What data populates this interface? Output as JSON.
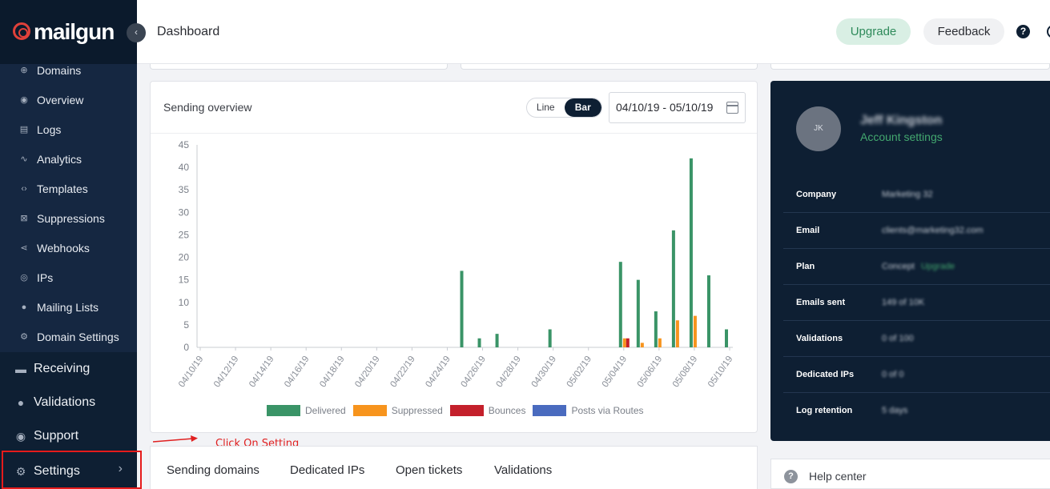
{
  "brand": {
    "name": "mailgun",
    "accent": "#e0413a"
  },
  "header": {
    "title": "Dashboard",
    "upgrade_label": "Upgrade",
    "feedback_label": "Feedback",
    "help_glyph": "?"
  },
  "sidebar": {
    "sub_items": [
      {
        "label": "Domains",
        "icon": "globe-icon",
        "glyph": "⊕"
      },
      {
        "label": "Overview",
        "icon": "eye-icon",
        "glyph": "◉"
      },
      {
        "label": "Logs",
        "icon": "document-icon",
        "glyph": "▤"
      },
      {
        "label": "Analytics",
        "icon": "trend-icon",
        "glyph": "∿"
      },
      {
        "label": "Templates",
        "icon": "code-icon",
        "glyph": "‹›"
      },
      {
        "label": "Suppressions",
        "icon": "block-icon",
        "glyph": "⊠"
      },
      {
        "label": "Webhooks",
        "icon": "share-icon",
        "glyph": "⋖"
      },
      {
        "label": "IPs",
        "icon": "location-icon",
        "glyph": "◎"
      },
      {
        "label": "Mailing Lists",
        "icon": "people-icon",
        "glyph": "●"
      },
      {
        "label": "Domain Settings",
        "icon": "gear-icon",
        "glyph": "⚙"
      }
    ],
    "main_items": [
      {
        "label": "Receiving",
        "icon": "inbox-icon",
        "glyph": "▬"
      },
      {
        "label": "Validations",
        "icon": "user-check-icon",
        "glyph": "●"
      },
      {
        "label": "Support",
        "icon": "help-icon",
        "glyph": "◉"
      },
      {
        "label": "Settings",
        "icon": "gear-icon",
        "glyph": "⚙"
      }
    ]
  },
  "sending_overview": {
    "title": "Sending overview",
    "toggle": {
      "line_label": "Line",
      "bar_label": "Bar",
      "selected": "Bar"
    },
    "date_range": "04/10/19 - 05/10/19"
  },
  "chart_data": {
    "type": "bar",
    "ylim": [
      0,
      45
    ],
    "yticks": [
      0,
      5,
      10,
      15,
      20,
      25,
      30,
      35,
      40,
      45
    ],
    "x_tick_labels": [
      "04/10/19",
      "04/12/19",
      "04/14/19",
      "04/16/19",
      "04/18/19",
      "04/20/19",
      "04/22/19",
      "04/24/19",
      "04/26/19",
      "04/28/19",
      "04/30/19",
      "05/02/19",
      "05/04/19",
      "05/06/19",
      "05/08/19",
      "05/10/19"
    ],
    "categories": [
      "04/10/19",
      "04/11/19",
      "04/12/19",
      "04/13/19",
      "04/14/19",
      "04/15/19",
      "04/16/19",
      "04/17/19",
      "04/18/19",
      "04/19/19",
      "04/20/19",
      "04/21/19",
      "04/22/19",
      "04/23/19",
      "04/24/19",
      "04/25/19",
      "04/26/19",
      "04/27/19",
      "04/28/19",
      "04/29/19",
      "04/30/19",
      "05/01/19",
      "05/02/19",
      "05/03/19",
      "05/04/19",
      "05/05/19",
      "05/06/19",
      "05/07/19",
      "05/08/19",
      "05/09/19",
      "05/10/19"
    ],
    "series": [
      {
        "name": "Delivered",
        "color": "#3a9467",
        "values": [
          0,
          0,
          0,
          0,
          0,
          0,
          0,
          0,
          0,
          0,
          0,
          0,
          0,
          0,
          0,
          17,
          2,
          3,
          0,
          0,
          4,
          0,
          0,
          0,
          19,
          15,
          8,
          26,
          42,
          16,
          4
        ]
      },
      {
        "name": "Suppressed",
        "color": "#f7941d",
        "values": [
          0,
          0,
          0,
          0,
          0,
          0,
          0,
          0,
          0,
          0,
          0,
          0,
          0,
          0,
          0,
          0,
          0,
          0,
          0,
          0,
          0,
          0,
          0,
          0,
          2,
          1,
          2,
          6,
          7,
          0,
          0
        ]
      },
      {
        "name": "Bounces",
        "color": "#c4202b",
        "values": [
          0,
          0,
          0,
          0,
          0,
          0,
          0,
          0,
          0,
          0,
          0,
          0,
          0,
          0,
          0,
          0,
          0,
          0,
          0,
          0,
          0,
          0,
          0,
          0,
          2,
          0,
          0,
          0,
          0,
          0,
          0
        ]
      },
      {
        "name": "Posts via Routes",
        "color": "#4a6bbf",
        "values": [
          0,
          0,
          0,
          0,
          0,
          0,
          0,
          0,
          0,
          0,
          0,
          0,
          0,
          0,
          0,
          0,
          0,
          0,
          0,
          0,
          0,
          0,
          0,
          0,
          0,
          0,
          0,
          0,
          0,
          0,
          0
        ]
      }
    ]
  },
  "annotation": {
    "text": "Click On Setting",
    "color": "#e02020"
  },
  "bottom_tabs": [
    "Sending domains",
    "Dedicated IPs",
    "Open tickets",
    "Validations"
  ],
  "account": {
    "initials": "JK",
    "name": "Jeff Kingston",
    "settings_link": "Account settings",
    "rows": [
      {
        "label": "Company",
        "value": "Marketing 32"
      },
      {
        "label": "Email",
        "value": "clients@marketing32.com"
      },
      {
        "label": "Plan",
        "value": "Concept",
        "link": "Upgrade"
      },
      {
        "label": "Emails sent",
        "value": "149 of 10K"
      },
      {
        "label": "Validations",
        "value": "0 of 100"
      },
      {
        "label": "Dedicated IPs",
        "value": "0 of 0"
      },
      {
        "label": "Log retention",
        "value": "5 days"
      }
    ]
  },
  "help_center": {
    "label": "Help center",
    "glyph": "?"
  }
}
